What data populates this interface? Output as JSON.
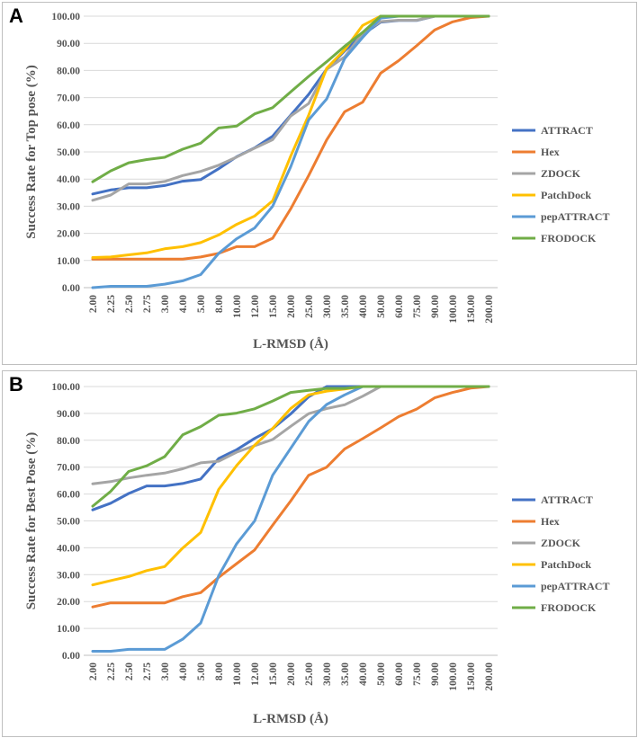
{
  "chart_data": [
    {
      "type": "line",
      "panel": "A",
      "title": "",
      "xlabel": "L-RMSD (Å)",
      "ylabel": "Success Rate for Top pose (%)",
      "ylim": [
        0,
        100
      ],
      "yticks": [
        "0.00",
        "10.00",
        "20.00",
        "30.00",
        "40.00",
        "50.00",
        "60.00",
        "70.00",
        "80.00",
        "90.00",
        "100.00"
      ],
      "categories": [
        "2.00",
        "2.25",
        "2.50",
        "2.75",
        "3.00",
        "4.00",
        "5.00",
        "8.00",
        "10.00",
        "12.00",
        "15.00",
        "20.00",
        "25.00",
        "30.00",
        "35.00",
        "40.00",
        "50.00",
        "60.00",
        "75.00",
        "90.00",
        "100.00",
        "150.00",
        "200.00"
      ],
      "legend_position": "right",
      "series": [
        {
          "name": "ATTRACT",
          "color": "#4472C4",
          "values": [
            34.5,
            36,
            36.8,
            36.8,
            37.6,
            39.2,
            39.8,
            43.8,
            48.2,
            51.5,
            55.8,
            63.5,
            71.2,
            80.5,
            87.2,
            93.2,
            97.8,
            98.4,
            98.4,
            100,
            100,
            100,
            100
          ]
        },
        {
          "name": "Hex",
          "color": "#ED7D31",
          "values": [
            10.5,
            10.5,
            10.5,
            10.5,
            10.5,
            10.5,
            11.3,
            12.6,
            15.1,
            15.1,
            18.2,
            29,
            41.3,
            54.4,
            64.8,
            68.3,
            79,
            83.6,
            89.1,
            94.9,
            97.9,
            99.5,
            100
          ]
        },
        {
          "name": "ZDOCK",
          "color": "#A5A5A5",
          "values": [
            32.2,
            34.1,
            38.2,
            38.2,
            39.1,
            41.3,
            42.8,
            45.1,
            48.1,
            51.4,
            54.5,
            63.2,
            67.8,
            80.4,
            85,
            93.7,
            98,
            98.5,
            98.5,
            100,
            100,
            100,
            100
          ]
        },
        {
          "name": "PatchDock",
          "color": "#FFC000",
          "values": [
            11.1,
            11.3,
            12.1,
            12.8,
            14.3,
            15.1,
            16.6,
            19.4,
            23.3,
            26.4,
            32,
            48.4,
            63.5,
            80.8,
            87.6,
            96.6,
            100,
            100,
            100,
            100,
            100,
            100,
            100
          ]
        },
        {
          "name": "pepATTRACT",
          "color": "#5B9BD5",
          "values": [
            0,
            0.5,
            0.5,
            0.5,
            1.3,
            2.5,
            4.8,
            12.6,
            18,
            22,
            30,
            44.5,
            61.8,
            69.5,
            84.4,
            92.2,
            99.3,
            100,
            100,
            100,
            100,
            100,
            100
          ]
        },
        {
          "name": "FRODOCK",
          "color": "#70AD47",
          "values": [
            39,
            43,
            46,
            47.2,
            48,
            51,
            53.2,
            58.8,
            59.5,
            64,
            66.3,
            72.1,
            77.8,
            83.2,
            88.9,
            94,
            100,
            100,
            100,
            100,
            100,
            100,
            100
          ]
        }
      ]
    },
    {
      "type": "line",
      "panel": "B",
      "title": "",
      "xlabel": "L-RMSD (Å)",
      "ylabel": "Success Rate for Best Pose (%)",
      "ylim": [
        0,
        100
      ],
      "yticks": [
        "0.00",
        "10.00",
        "20.00",
        "30.00",
        "40.00",
        "50.00",
        "60.00",
        "70.00",
        "80.00",
        "90.00",
        "100.00"
      ],
      "categories": [
        "2.00",
        "2.25",
        "2.50",
        "2.75",
        "3.00",
        "4.00",
        "5.00",
        "8.00",
        "10.00",
        "12.00",
        "15.00",
        "20.00",
        "25.00",
        "30.00",
        "35.00",
        "40.00",
        "50.00",
        "60.00",
        "75.00",
        "90.00",
        "100.00",
        "150.00",
        "200.00"
      ],
      "legend_position": "right",
      "series": [
        {
          "name": "ATTRACT",
          "color": "#4472C4",
          "values": [
            54.1,
            56.6,
            60.2,
            63,
            63,
            63.9,
            65.6,
            73.2,
            76.5,
            80.7,
            84.3,
            89.8,
            96.2,
            100,
            100,
            100,
            100,
            100,
            100,
            100,
            100,
            100,
            100
          ]
        },
        {
          "name": "Hex",
          "color": "#ED7D31",
          "values": [
            18,
            19.5,
            19.5,
            19.5,
            19.5,
            21.8,
            23.3,
            29,
            34.1,
            39.2,
            48.4,
            57.4,
            67,
            70,
            76.8,
            80.6,
            84.6,
            88.8,
            91.6,
            95.8,
            97.8,
            99.4,
            100
          ]
        },
        {
          "name": "ZDOCK",
          "color": "#A5A5A5",
          "values": [
            63.8,
            64.6,
            66,
            67,
            67.8,
            69.4,
            71.6,
            72.2,
            75.6,
            78,
            80.3,
            85.2,
            89.9,
            91.8,
            93.2,
            96.4,
            100,
            100,
            100,
            100,
            100,
            100,
            100
          ]
        },
        {
          "name": "PatchDock",
          "color": "#FFC000",
          "values": [
            26.2,
            27.8,
            29.3,
            31.5,
            33,
            39.9,
            45.7,
            61.7,
            70.6,
            78.2,
            84.4,
            91.8,
            96.9,
            98.3,
            99.1,
            100,
            100,
            100,
            100,
            100,
            100,
            100,
            100
          ]
        },
        {
          "name": "pepATTRACT",
          "color": "#5B9BD5",
          "values": [
            1.5,
            1.5,
            2.2,
            2.2,
            2.2,
            6,
            12,
            29.6,
            41.5,
            50,
            67,
            77,
            87,
            93.3,
            96.9,
            100,
            100,
            100,
            100,
            100,
            100,
            100,
            100
          ]
        },
        {
          "name": "FRODOCK",
          "color": "#70AD47",
          "values": [
            55.5,
            61,
            68.4,
            70.5,
            73.9,
            82,
            85.1,
            89.3,
            90.1,
            91.7,
            94.6,
            97.8,
            98.6,
            99.3,
            99.3,
            100,
            100,
            100,
            100,
            100,
            100,
            100,
            100
          ]
        }
      ]
    }
  ],
  "panels": {
    "a_label": "A",
    "b_label": "B"
  }
}
